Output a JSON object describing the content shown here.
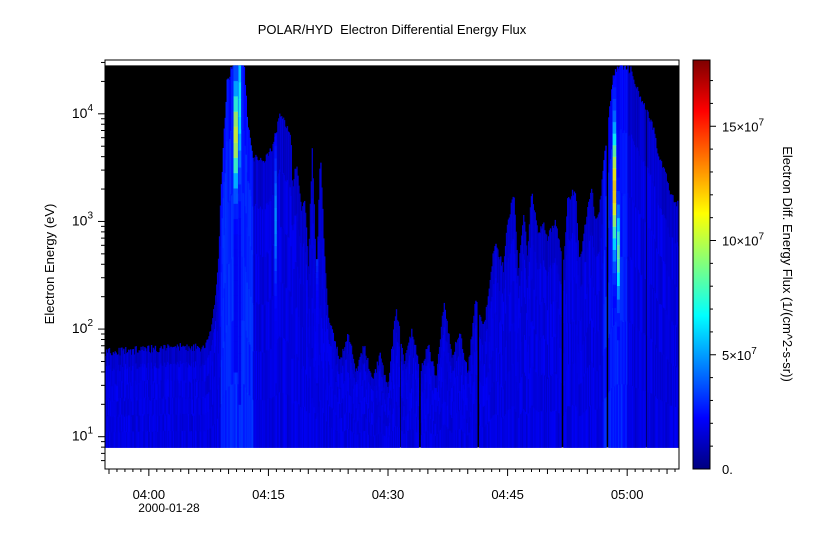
{
  "chart_data": {
    "type": "heatmap",
    "title": "POLAR/HYD  Electron Differential Energy Flux",
    "xlabel": "",
    "ylabel": "Electron Energy (eV)",
    "colorbar_label": "Electron Diff. Energy Flux (1/(cm^2-s-sr))",
    "x_tick_labels": [
      "04:00",
      "04:15",
      "04:30",
      "04:45",
      "05:00"
    ],
    "x_ticks_min": [
      0,
      15,
      30,
      45,
      60
    ],
    "date_label": "2000-01-28",
    "xlim_min": [
      -5.5,
      66.5
    ],
    "ylim_log10": [
      0.7,
      4.5
    ],
    "y_scale": "log",
    "y_ticks": [
      {
        "exp": 1,
        "base": "10",
        "sup": "1"
      },
      {
        "exp": 2,
        "base": "10",
        "sup": "2"
      },
      {
        "exp": 3,
        "base": "10",
        "sup": "3"
      },
      {
        "exp": 4,
        "base": "10",
        "sup": "4"
      }
    ],
    "energy_range_log10": [
      0.9,
      4.45
    ],
    "colorbar_range": [
      0,
      17.9
    ],
    "colorbar_unit": "x10^7",
    "colorbar_ticks": [
      {
        "value": 0,
        "label": "0."
      },
      {
        "value": 5,
        "label": "5×10^7"
      },
      {
        "value": 10,
        "label": "10×10^7"
      },
      {
        "value": 15,
        "label": "15×10^7"
      }
    ],
    "colormap": [
      "#00007f",
      "#0000ff",
      "#007fff",
      "#00ffff",
      "#7fff7f",
      "#ffff00",
      "#ff7f00",
      "#ff0000",
      "#7f0000"
    ],
    "background_color": "#000000",
    "upper_envelope": [
      [
        -5.5,
        1.79
      ],
      [
        -2,
        1.8
      ],
      [
        1,
        1.82
      ],
      [
        2.5,
        1.83
      ],
      [
        7,
        1.83
      ],
      [
        7.4,
        1.9
      ],
      [
        7.8,
        2.0
      ],
      [
        8.3,
        2.3
      ],
      [
        8.7,
        2.6
      ],
      [
        9.0,
        3.2
      ],
      [
        9.4,
        3.8
      ],
      [
        9.8,
        4.3
      ],
      [
        10.6,
        4.48
      ],
      [
        11.9,
        4.48
      ],
      [
        12.4,
        3.9
      ],
      [
        13.0,
        3.6
      ],
      [
        14.5,
        3.55
      ],
      [
        15.5,
        3.7
      ],
      [
        16.5,
        4.0
      ],
      [
        17.8,
        3.8
      ],
      [
        18.0,
        3.3
      ],
      [
        18.5,
        3.55
      ],
      [
        19.2,
        3.1
      ],
      [
        19.5,
        3.25
      ],
      [
        20.0,
        2.6
      ],
      [
        20.5,
        3.7
      ],
      [
        21.0,
        2.4
      ],
      [
        21.5,
        3.65
      ],
      [
        22.0,
        2.7
      ],
      [
        22.5,
        2.1
      ],
      [
        24.0,
        1.7
      ],
      [
        25.0,
        1.95
      ],
      [
        26.0,
        1.6
      ],
      [
        27.0,
        1.85
      ],
      [
        28.0,
        1.5
      ],
      [
        29.0,
        1.75
      ],
      [
        30.0,
        1.45
      ],
      [
        31.0,
        2.2
      ],
      [
        32.0,
        1.7
      ],
      [
        33.0,
        2.0
      ],
      [
        34.0,
        1.6
      ],
      [
        35.0,
        1.85
      ],
      [
        36.0,
        1.55
      ],
      [
        37.0,
        2.25
      ],
      [
        38.0,
        1.75
      ],
      [
        39.0,
        1.95
      ],
      [
        40.0,
        1.6
      ],
      [
        41.0,
        2.3
      ],
      [
        42.0,
        2.0
      ],
      [
        43.0,
        2.6
      ],
      [
        43.5,
        2.8
      ],
      [
        44.5,
        2.55
      ],
      [
        45.0,
        3.0
      ],
      [
        45.8,
        3.25
      ],
      [
        46.3,
        2.5
      ],
      [
        47.0,
        3.1
      ],
      [
        47.5,
        2.7
      ],
      [
        48.0,
        3.3
      ],
      [
        48.8,
        2.9
      ],
      [
        49.5,
        3.0
      ],
      [
        50.0,
        2.85
      ],
      [
        51.0,
        3.0
      ],
      [
        52.0,
        2.6
      ],
      [
        52.5,
        3.2
      ],
      [
        53.5,
        3.3
      ],
      [
        54.0,
        2.6
      ],
      [
        55.0,
        3.1
      ],
      [
        55.5,
        3.35
      ],
      [
        56.0,
        3.0
      ],
      [
        56.5,
        3.1
      ],
      [
        57.3,
        3.7
      ],
      [
        57.8,
        4.1
      ],
      [
        58.5,
        4.4
      ],
      [
        59.5,
        4.45
      ],
      [
        60.5,
        4.4
      ],
      [
        61.5,
        4.2
      ],
      [
        62.5,
        4.0
      ],
      [
        63.3,
        3.85
      ],
      [
        64.0,
        3.6
      ],
      [
        64.8,
        3.45
      ],
      [
        65.5,
        3.25
      ],
      [
        66.5,
        3.15
      ]
    ],
    "hot_bands": [
      {
        "t": 10.9,
        "width": 0.55,
        "peak_log10": 3.8,
        "spread": 0.45,
        "level": 10.5,
        "bottom_log10": 1.6
      },
      {
        "t": 11.4,
        "width": 0.35,
        "peak_log10": 4.1,
        "spread": 0.6,
        "level": 7.0,
        "bottom_log10": 1.3
      },
      {
        "t": 15.9,
        "width": 0.3,
        "peak_log10": 3.0,
        "spread": 0.5,
        "level": 5.0,
        "bottom_log10": 1.5
      },
      {
        "t": 21.1,
        "width": 0.3,
        "peak_log10": 3.1,
        "spread": 0.5,
        "level": 4.5,
        "bottom_log10": 1.5
      },
      {
        "t": 58.4,
        "width": 0.45,
        "peak_log10": 3.3,
        "spread": 0.55,
        "level": 12.0,
        "bottom_log10": 2.2
      },
      {
        "t": 58.9,
        "width": 0.35,
        "peak_log10": 2.7,
        "spread": 0.4,
        "level": 8.5,
        "bottom_log10": 1.9
      }
    ]
  }
}
